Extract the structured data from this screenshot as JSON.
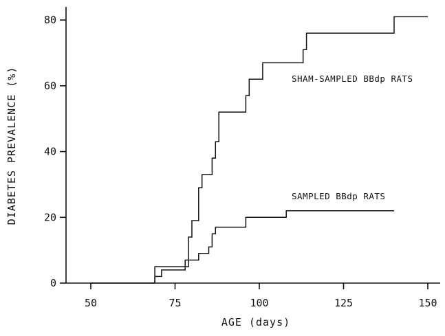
{
  "chart_data": {
    "type": "line",
    "step": true,
    "xlabel": "AGE (days)",
    "ylabel": "DIABETES PREVALENCE (%)",
    "xlim": [
      45,
      152
    ],
    "ylim": [
      0,
      84
    ],
    "xticks": [
      50,
      75,
      100,
      125,
      150
    ],
    "yticks": [
      0,
      20,
      40,
      60,
      80
    ],
    "grid": false,
    "series": [
      {
        "name": "SHAM-SAMPLED BBdp RATS",
        "color": "#111111",
        "x": [
          68,
          69,
          78,
          79,
          80,
          82,
          83,
          86,
          87,
          88,
          96,
          97,
          99,
          101,
          113,
          114,
          116,
          140,
          150
        ],
        "y": [
          0,
          5,
          5,
          14,
          19,
          29,
          33,
          38,
          43,
          52,
          57,
          62,
          62,
          67,
          71,
          76,
          76,
          81,
          81
        ]
      },
      {
        "name": "SAMPLED BBdp RATS",
        "color": "#111111",
        "x": [
          50,
          68,
          69,
          70,
          71,
          77,
          78,
          82,
          85,
          86,
          87,
          88,
          96,
          108,
          140
        ],
        "y": [
          0,
          0,
          2,
          2,
          4,
          4,
          7,
          9,
          11,
          15,
          17,
          17,
          20,
          22,
          22
        ]
      }
    ]
  }
}
